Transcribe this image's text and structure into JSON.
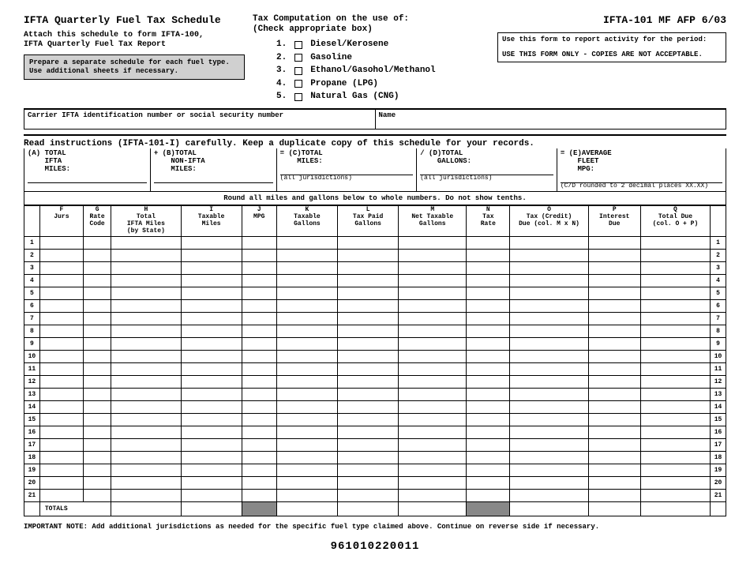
{
  "header": {
    "title": "IFTA Quarterly Fuel Tax Schedule",
    "attach": "Attach this schedule to form IFTA-100,\nIFTA Quarterly Fuel Tax Report",
    "prep_box": "Prepare a separate schedule for each fuel type. Use additional sheets if necessary.",
    "comp_title": "Tax Computation on the use of:\n(Check appropriate box)",
    "fuels": [
      "Diesel/Kerosene",
      "Gasoline",
      "Ethanol/Gasohol/Methanol",
      "Propane (LPG)",
      "Natural Gas (CNG)"
    ],
    "form_code": "IFTA-101 MF AFP 6/03",
    "period_line1": "Use this form to report activity for the period:",
    "period_line2": "USE THIS FORM ONLY - COPIES ARE NOT ACCEPTABLE."
  },
  "carrier": {
    "left": "Carrier IFTA identification number or social security number",
    "right": "Name"
  },
  "instr": "Read instructions (IFTA-101-I) carefully.  Keep a duplicate copy of this schedule for your records.",
  "abcde": {
    "a": "(A) TOTAL\n    IFTA\n    MILES:",
    "b": "+ (B)TOTAL\n    NON-IFTA\n    MILES:",
    "c": "= (C)TOTAL\n    MILES:",
    "c_sub": "(all jurisdictions)",
    "d": "/ (D)TOTAL\n    GALLONS:",
    "d_sub": "(all jurisdictions)",
    "e": "= (E)AVERAGE\n    FLEET\n    MPG:",
    "e_sub": "(C/D rounded to 2 decimal places XX.XX)"
  },
  "round_note": "Round all miles and gallons below to whole numbers.  Do not show tenths.",
  "cols": {
    "F": "F\nJurs",
    "G": "G\nRate\nCode",
    "H": "H\nTotal\nIFTA Miles\n(by State)",
    "I": "I\nTaxable\nMiles",
    "J": "J\nMPG",
    "K": "K\nTaxable\nGallons",
    "L": "L\nTax Paid\nGallons",
    "M": "M\nNet Taxable\nGallons",
    "N": "N\nTax\nRate",
    "O": "O\nTax (Credit)\nDue (col. M x N)",
    "P": "P\nInterest\nDue",
    "Q": "Q\nTotal Due\n(col. O + P)"
  },
  "num_rows": 21,
  "totals_label": "TOTALS",
  "footer": "IMPORTANT NOTE:  Add additional jurisdictions as needed for the specific fuel type claimed above. Continue on reverse side if necessary.",
  "barcode": "961010220011",
  "shaded_cols_in_totals": [
    "J",
    "N"
  ],
  "style": {
    "bg": "#ffffff",
    "shaded": "#888888",
    "prep_bg": "#d0d0d0",
    "col_widths": {
      "rownum": 18,
      "F": 50,
      "G": 32,
      "H": 80,
      "I": 70,
      "J": 40,
      "K": 70,
      "L": 70,
      "M": 78,
      "N": 50,
      "O": 90,
      "P": 60,
      "Q": 80,
      "rownum2": 18
    }
  }
}
